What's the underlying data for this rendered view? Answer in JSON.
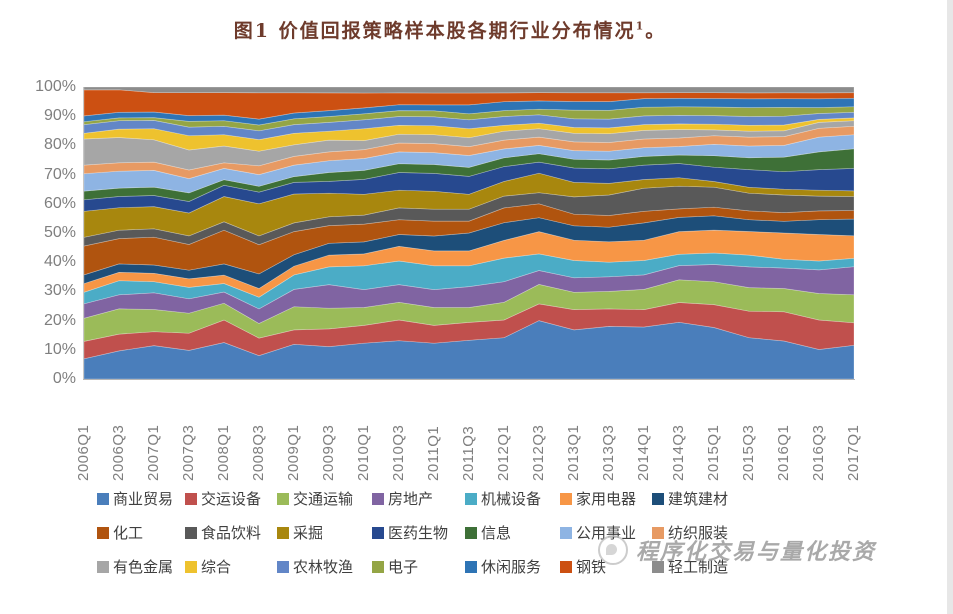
{
  "title": {
    "text": "图1 价值回报策略样本股各期行业分布情况",
    "superscript": "1",
    "suffix": "。"
  },
  "watermark": {
    "text": "程序化交易与量化投资"
  },
  "chart_data": {
    "type": "area",
    "stacking": "percent",
    "title": "图1 价值回报策略样本股各期行业分布情况",
    "xlabel": "",
    "ylabel": "",
    "ylim": [
      0,
      100
    ],
    "grid": false,
    "legend_position": "bottom",
    "y_ticks": [
      "0%",
      "10%",
      "20%",
      "30%",
      "40%",
      "50%",
      "60%",
      "70%",
      "80%",
      "90%",
      "100%"
    ],
    "categories": [
      "2006Q1",
      "2006Q3",
      "2007Q1",
      "2007Q3",
      "2008Q1",
      "2008Q3",
      "2009Q1",
      "2009Q3",
      "2010Q1",
      "2010Q3",
      "2011Q1",
      "2011Q3",
      "2012Q1",
      "2012Q3",
      "2013Q1",
      "2013Q3",
      "2014Q1",
      "2014Q3",
      "2015Q1",
      "2015Q3",
      "2016Q1",
      "2016Q3",
      "2017Q1"
    ],
    "series": [
      {
        "name": "商业贸易",
        "color": "#4a7ebb",
        "values": [
          7,
          10,
          12,
          10,
          13,
          8,
          12,
          11,
          12,
          13,
          12,
          13,
          14,
          21,
          17,
          18,
          18,
          20,
          18,
          14,
          13,
          10,
          12
        ]
      },
      {
        "name": "交运设备",
        "color": "#c0504d",
        "values": [
          6,
          6,
          5,
          6,
          8,
          6,
          5,
          6,
          6,
          7,
          6,
          6,
          6,
          6,
          7,
          6,
          6,
          7,
          8,
          9,
          10,
          10,
          8
        ]
      },
      {
        "name": "交通运输",
        "color": "#9bbb59",
        "values": [
          8,
          9,
          8,
          7,
          6,
          5,
          8,
          7,
          6,
          6,
          6,
          5,
          6,
          7,
          6,
          6,
          7,
          8,
          8,
          8,
          8,
          9,
          10
        ]
      },
      {
        "name": "房地产",
        "color": "#8064a2",
        "values": [
          5,
          5,
          6,
          5,
          4,
          5,
          6,
          8,
          6,
          6,
          6,
          7,
          7,
          5,
          5,
          5,
          5,
          5,
          6,
          7,
          7,
          8,
          10
        ]
      },
      {
        "name": "机械设备",
        "color": "#4bacc6",
        "values": [
          4,
          5,
          4,
          4,
          3,
          4,
          5,
          6,
          8,
          8,
          8,
          7,
          8,
          6,
          6,
          5,
          5,
          4,
          4,
          4,
          3,
          3,
          3
        ]
      },
      {
        "name": "家用电器",
        "color": "#f79646",
        "values": [
          3,
          3,
          3,
          3,
          3,
          3,
          3,
          4,
          4,
          5,
          5,
          5,
          6,
          8,
          7,
          7,
          7,
          8,
          8,
          8,
          9,
          9,
          8
        ]
      },
      {
        "name": "建筑建材",
        "color": "#1d4e79",
        "values": [
          3,
          3,
          3,
          3,
          4,
          5,
          4,
          4,
          4,
          4,
          5,
          6,
          6,
          5,
          5,
          5,
          6,
          5,
          5,
          4,
          4,
          5,
          6
        ]
      },
      {
        "name": "化工",
        "color": "#b0540f",
        "values": [
          10,
          9,
          10,
          9,
          12,
          10,
          8,
          6,
          6,
          5,
          5,
          4,
          5,
          5,
          4,
          4,
          4,
          3,
          3,
          3,
          3,
          3,
          3
        ]
      },
      {
        "name": "食品饮料",
        "color": "#595959",
        "values": [
          3,
          3,
          3,
          3,
          3,
          3,
          3,
          3,
          3,
          4,
          4,
          4,
          4,
          4,
          6,
          7,
          8,
          8,
          7,
          6,
          6,
          5,
          5
        ]
      },
      {
        "name": "采掘",
        "color": "#a8870e",
        "values": [
          9,
          8,
          8,
          8,
          9,
          11,
          10,
          8,
          7,
          6,
          6,
          5,
          5,
          7,
          5,
          4,
          3,
          3,
          2,
          2,
          2,
          2,
          2
        ]
      },
      {
        "name": "医药生物",
        "color": "#27498f",
        "values": [
          4,
          4,
          4,
          4,
          4,
          4,
          4,
          4,
          5,
          6,
          6,
          6,
          5,
          4,
          5,
          5,
          5,
          5,
          5,
          6,
          6,
          7,
          8
        ]
      },
      {
        "name": "信息",
        "color": "#3e7037",
        "values": [
          3,
          3,
          3,
          3,
          2,
          2,
          2,
          3,
          3,
          3,
          3,
          3,
          3,
          3,
          3,
          3,
          3,
          3,
          4,
          4,
          5,
          6,
          7
        ]
      },
      {
        "name": "公用事业",
        "color": "#8eb4e3",
        "values": [
          6,
          6,
          6,
          5,
          4,
          4,
          4,
          4,
          4,
          4,
          4,
          4,
          3,
          3,
          3,
          3,
          3,
          3,
          4,
          4,
          4,
          5,
          5
        ]
      },
      {
        "name": "纺织服装",
        "color": "#e79a63",
        "values": [
          3,
          3,
          3,
          3,
          2,
          3,
          3,
          3,
          3,
          3,
          3,
          3,
          3,
          3,
          3,
          3,
          3,
          3,
          3,
          3,
          3,
          3,
          3
        ]
      },
      {
        "name": "有色金属",
        "color": "#a6a6a6",
        "values": [
          9,
          9,
          8,
          7,
          6,
          5,
          4,
          4,
          3,
          3,
          3,
          3,
          3,
          3,
          3,
          3,
          3,
          3,
          2,
          2,
          2,
          2,
          2
        ]
      },
      {
        "name": "综合",
        "color": "#eec22e",
        "values": [
          2,
          3,
          4,
          5,
          4,
          4,
          4,
          3,
          4,
          3,
          3,
          3,
          2,
          2,
          2,
          2,
          2,
          2,
          2,
          2,
          2,
          1,
          1
        ]
      },
      {
        "name": "农林牧渔",
        "color": "#6286c7",
        "values": [
          3,
          3,
          3,
          3,
          3,
          3,
          3,
          3,
          3,
          3,
          3,
          3,
          3,
          3,
          3,
          3,
          3,
          3,
          3,
          3,
          3,
          2,
          2
        ]
      },
      {
        "name": "电子",
        "color": "#94a545",
        "values": [
          1,
          1,
          1,
          2,
          2,
          2,
          2,
          2,
          2,
          2,
          2,
          2,
          2,
          2,
          3,
          3,
          3,
          3,
          3,
          3,
          3,
          2,
          2
        ]
      },
      {
        "name": "休闲服务",
        "color": "#2e74b5",
        "values": [
          2,
          2,
          2,
          2,
          2,
          2,
          2,
          2,
          2,
          2,
          2,
          3,
          3,
          3,
          3,
          3,
          3,
          3,
          3,
          3,
          3,
          3,
          3
        ]
      },
      {
        "name": "钢铁",
        "color": "#cc5012",
        "values": [
          9,
          8,
          7,
          8,
          8,
          9,
          7,
          6,
          5,
          4,
          4,
          4,
          3,
          3,
          3,
          3,
          2,
          2,
          2,
          2,
          2,
          2,
          2
        ]
      },
      {
        "name": "轻工制造",
        "color": "#8c8c8c",
        "values": [
          1,
          1,
          2,
          2,
          2,
          2,
          2,
          2,
          2,
          2,
          2,
          2,
          2,
          2,
          2,
          2,
          2,
          2,
          2,
          2,
          2,
          2,
          2
        ]
      }
    ]
  }
}
